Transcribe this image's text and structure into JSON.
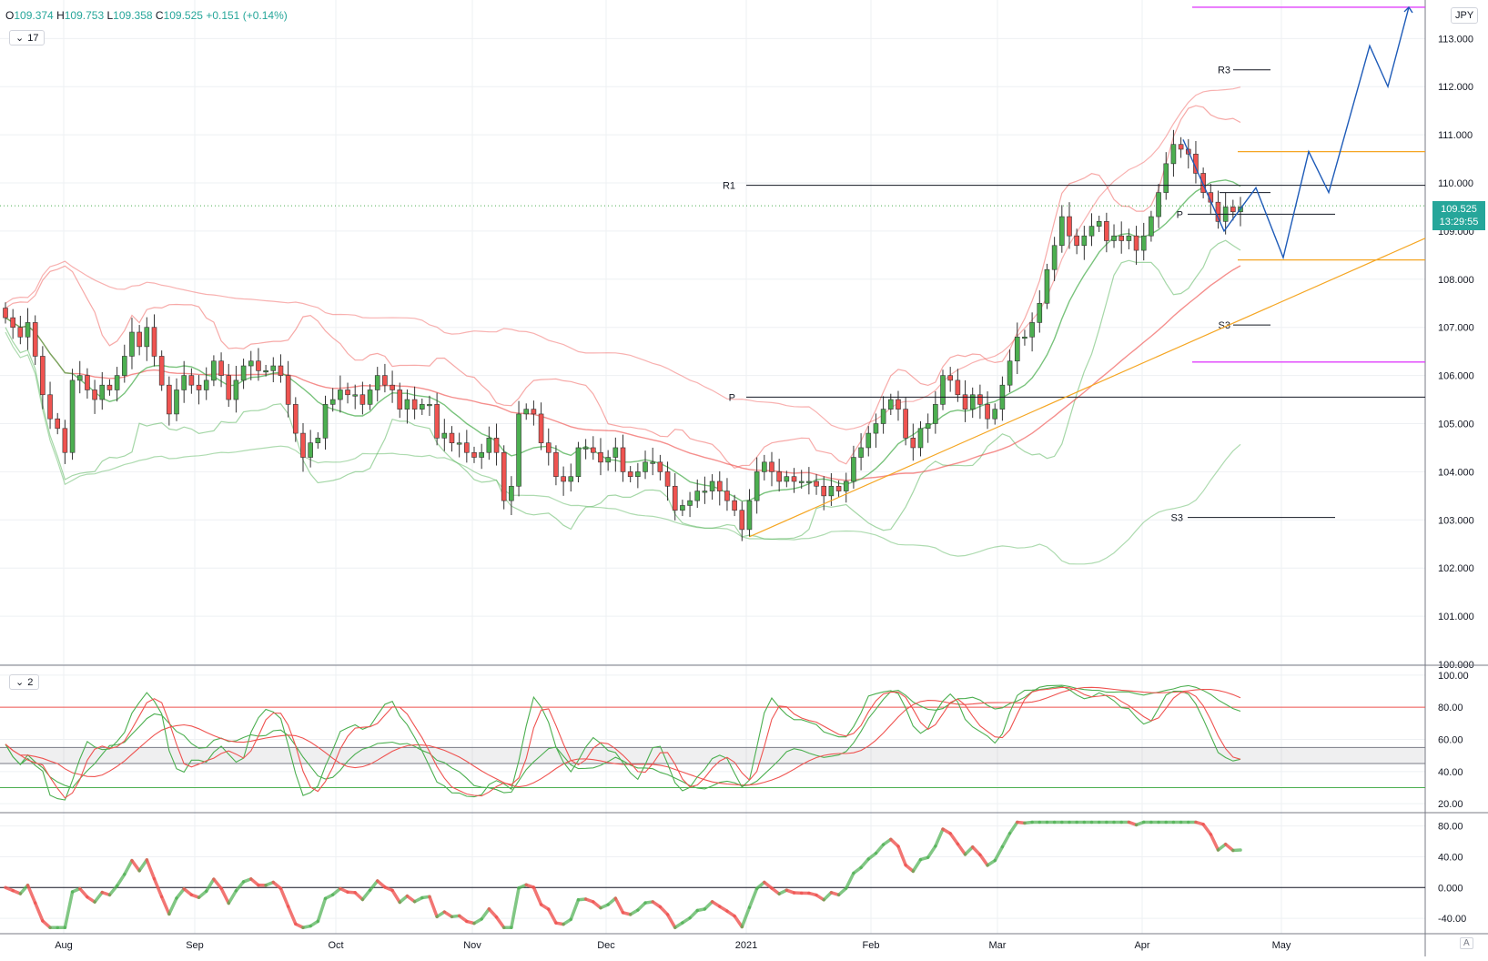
{
  "header": {
    "ohlc": [
      {
        "k": "O",
        "v": "109.374"
      },
      {
        "k": "H",
        "v": "109.753"
      },
      {
        "k": "L",
        "v": "109.358"
      },
      {
        "k": "C",
        "v": "109.525"
      },
      {
        "k": "",
        "v": "+0.151"
      },
      {
        "k": "",
        "v": "(+0.14%)"
      }
    ],
    "interval": "17",
    "oscillator_pane_label": "2",
    "currency": "JPY",
    "auto_button": "A"
  },
  "last_price": {
    "value": "109.525",
    "countdown": "13:29:55"
  },
  "colors": {
    "up": "#26a69a",
    "candle_up": "#4caf50",
    "candle_down": "#ef5350",
    "red": "#ef5350",
    "green": "#4caf50",
    "blue": "#1e5bb8",
    "orange": "#f5a623",
    "magenta": "#e040fb",
    "grid": "#eef0f3"
  },
  "chart_data": [
    {
      "type": "candlestick",
      "title": "",
      "ylim": [
        100.0,
        113.8
      ],
      "y_ticks": [
        "100.000",
        "101.000",
        "102.000",
        "103.000",
        "104.000",
        "105.000",
        "106.000",
        "107.000",
        "108.000",
        "109.000",
        "110.000",
        "111.000",
        "112.000",
        "113.000"
      ],
      "x_ticks": [
        "Aug",
        "Sep",
        "Oct",
        "Nov",
        "Dec",
        "2021",
        "Feb",
        "Mar",
        "Apr",
        "May"
      ],
      "grid": true,
      "candles_close": [
        107.2,
        107.0,
        106.8,
        107.1,
        106.4,
        105.6,
        105.1,
        104.9,
        104.4,
        105.9,
        106.0,
        105.7,
        105.5,
        105.8,
        105.7,
        106.0,
        106.4,
        106.9,
        106.6,
        107.0,
        106.4,
        105.8,
        105.2,
        105.7,
        106.0,
        105.8,
        105.7,
        105.9,
        106.3,
        106.0,
        105.5,
        105.9,
        106.2,
        106.3,
        106.1,
        106.1,
        106.2,
        106.0,
        105.4,
        104.8,
        104.3,
        104.6,
        104.7,
        105.4,
        105.5,
        105.7,
        105.6,
        105.6,
        105.4,
        105.7,
        106.0,
        105.8,
        105.7,
        105.3,
        105.5,
        105.3,
        105.4,
        105.4,
        104.7,
        104.8,
        104.6,
        104.6,
        104.4,
        104.3,
        104.4,
        104.7,
        104.4,
        103.4,
        103.7,
        105.2,
        105.3,
        105.2,
        104.6,
        104.4,
        103.9,
        103.8,
        103.9,
        104.5,
        104.5,
        104.4,
        104.2,
        104.3,
        104.5,
        104.0,
        103.9,
        104.0,
        104.2,
        104.2,
        104.0,
        103.7,
        103.2,
        103.3,
        103.4,
        103.6,
        103.6,
        103.8,
        103.6,
        103.4,
        103.2,
        102.8,
        103.4,
        104.0,
        104.2,
        104.0,
        103.8,
        103.9,
        103.8,
        103.8,
        103.8,
        103.7,
        103.5,
        103.7,
        103.6,
        103.8,
        104.3,
        104.5,
        104.8,
        105.0,
        105.3,
        105.5,
        105.3,
        104.7,
        104.5,
        104.9,
        105.0,
        105.4,
        106.0,
        105.9,
        105.6,
        105.3,
        105.6,
        105.4,
        105.1,
        105.3,
        105.8,
        106.3,
        106.8,
        106.8,
        107.1,
        107.5,
        108.2,
        108.7,
        109.3,
        108.9,
        108.7,
        108.9,
        109.1,
        109.2,
        108.8,
        108.9,
        108.8,
        108.9,
        108.6,
        108.9,
        109.3,
        109.8,
        110.4,
        110.8,
        110.7,
        110.6,
        110.2,
        109.8,
        109.6,
        109.2,
        109.5,
        109.4,
        109.5
      ],
      "candles_open": [
        107.4,
        107.2,
        107.0,
        106.8,
        107.1,
        106.4,
        105.6,
        105.1,
        104.9,
        104.4,
        105.9,
        106.0,
        105.7,
        105.5,
        105.8,
        105.7,
        106.0,
        106.4,
        106.9,
        106.6,
        107.0,
        106.4,
        105.8,
        105.2,
        105.7,
        106.0,
        105.8,
        105.7,
        105.9,
        106.3,
        106.0,
        105.5,
        105.9,
        106.2,
        106.3,
        106.1,
        106.1,
        106.2,
        106.0,
        105.4,
        104.8,
        104.3,
        104.6,
        104.7,
        105.4,
        105.5,
        105.7,
        105.6,
        105.6,
        105.4,
        105.7,
        106.0,
        105.8,
        105.7,
        105.3,
        105.5,
        105.3,
        105.4,
        105.4,
        104.7,
        104.8,
        104.6,
        104.6,
        104.4,
        104.3,
        104.4,
        104.7,
        104.4,
        103.4,
        103.7,
        105.2,
        105.3,
        105.2,
        104.6,
        104.4,
        103.9,
        103.8,
        103.9,
        104.5,
        104.5,
        104.4,
        104.2,
        104.3,
        104.5,
        104.0,
        103.9,
        104.0,
        104.2,
        104.2,
        104.0,
        103.7,
        103.2,
        103.3,
        103.4,
        103.6,
        103.6,
        103.8,
        103.6,
        103.4,
        103.2,
        102.8,
        103.4,
        104.0,
        104.2,
        104.0,
        103.8,
        103.9,
        103.8,
        103.8,
        103.8,
        103.7,
        103.5,
        103.7,
        103.6,
        103.8,
        104.3,
        104.5,
        104.8,
        105.0,
        105.3,
        105.5,
        105.3,
        104.7,
        104.5,
        104.9,
        105.0,
        105.4,
        106.0,
        105.9,
        105.6,
        105.3,
        105.6,
        105.4,
        105.1,
        105.3,
        105.8,
        106.3,
        106.8,
        106.8,
        107.1,
        107.5,
        108.2,
        108.7,
        109.3,
        108.9,
        108.7,
        108.9,
        109.1,
        109.2,
        108.8,
        108.9,
        108.8,
        108.9,
        108.6,
        108.9,
        109.3,
        109.8,
        110.4,
        110.8,
        110.7,
        110.6,
        110.2,
        109.8,
        109.6,
        109.2,
        109.5,
        109.4
      ]
    },
    {
      "type": "line",
      "title": "",
      "ylim": [
        15,
        105
      ],
      "y_ticks": [
        "20.00",
        "40.00",
        "60.00",
        "80.00",
        "100.00"
      ],
      "grid": true
    },
    {
      "type": "line",
      "title": "",
      "ylim": [
        -60,
        95
      ],
      "y_ticks": [
        "-40.00",
        "0.000",
        "40.00",
        "80.00"
      ],
      "grid": true
    }
  ],
  "annotations": {
    "pivot_labels": [
      {
        "text": "R1",
        "price": 109.95
      },
      {
        "text": "P",
        "price": 105.55
      },
      {
        "text": "R3",
        "price": 112.35
      },
      {
        "text": "P",
        "price": 109.35
      },
      {
        "text": "S3",
        "price": 107.05
      },
      {
        "text": "S3",
        "price": 103.05
      }
    ]
  }
}
